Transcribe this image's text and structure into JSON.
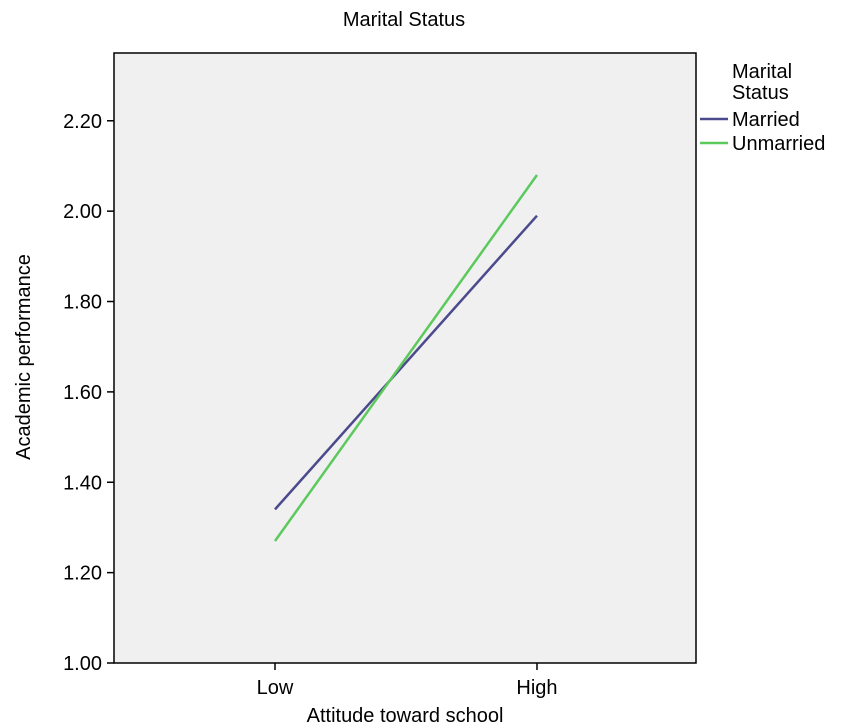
{
  "chart_data": {
    "type": "line",
    "title": "Marital Status",
    "xlabel": "Attitude toward school",
    "ylabel": "Academic performance",
    "categories": [
      "Low",
      "High"
    ],
    "ylim": [
      1.0,
      2.35
    ],
    "yticks": [
      1.0,
      1.2,
      1.4,
      1.6,
      1.8,
      2.0,
      2.2
    ],
    "ytick_labels": [
      "1.00",
      "1.20",
      "1.40",
      "1.60",
      "1.80",
      "2.00",
      "2.20"
    ],
    "grid": false,
    "legend": {
      "title": "Marital Status",
      "placement": "right"
    },
    "series": [
      {
        "name": "Married",
        "values": [
          1.34,
          1.99
        ],
        "color": "#4b4a8c"
      },
      {
        "name": "Unmarried",
        "values": [
          1.27,
          2.08
        ],
        "color": "#5cc95c"
      }
    ],
    "plot_background": "#f0f0f0"
  }
}
